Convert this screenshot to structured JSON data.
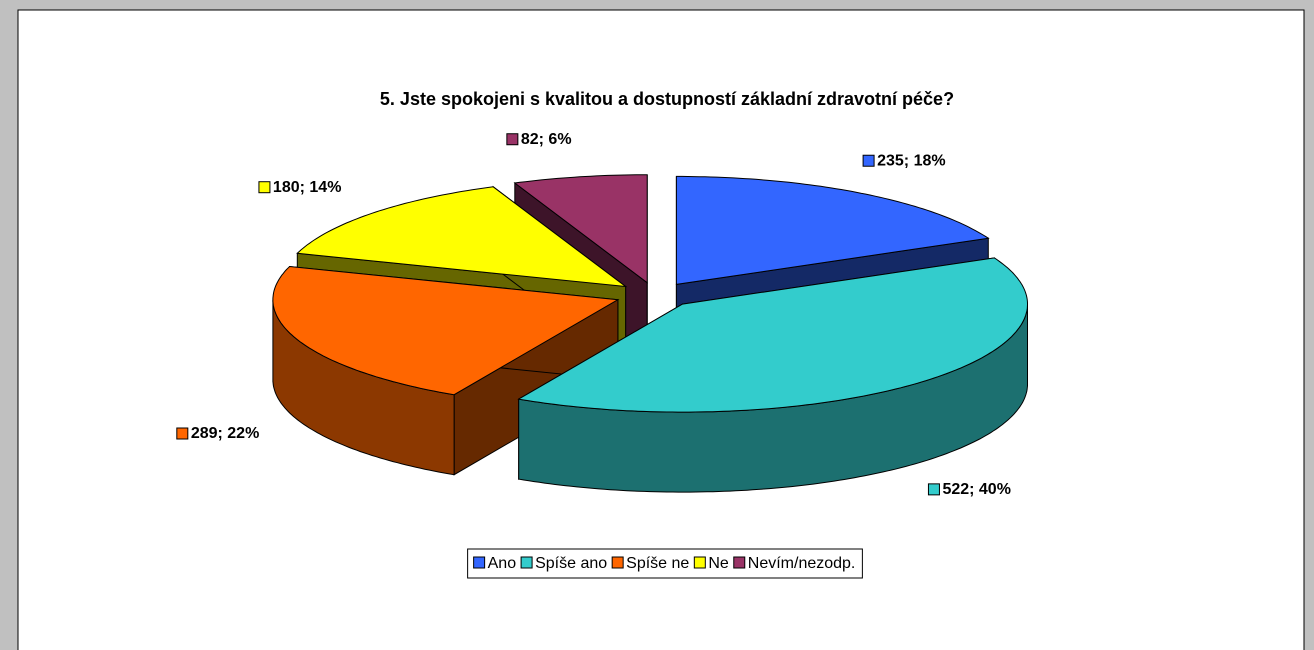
{
  "chart_data": {
    "type": "pie3d",
    "title": "5. Jste spokojeni s kvalitou a dostupností základní zdravotní péče?",
    "categories": [
      "Ano",
      "Spíše ano",
      "Spíše ne",
      "Ne",
      "Nevím/nezodp."
    ],
    "values": [
      235,
      522,
      289,
      180,
      82
    ],
    "value_labels": [
      "235; 18%",
      "522; 40%",
      "289; 22%",
      "180; 14%",
      "82; 6%"
    ],
    "colors": [
      "#3366ff",
      "#33cccc",
      "#ff6600",
      "#ffff00",
      "#993366"
    ],
    "legend": "bottom"
  }
}
